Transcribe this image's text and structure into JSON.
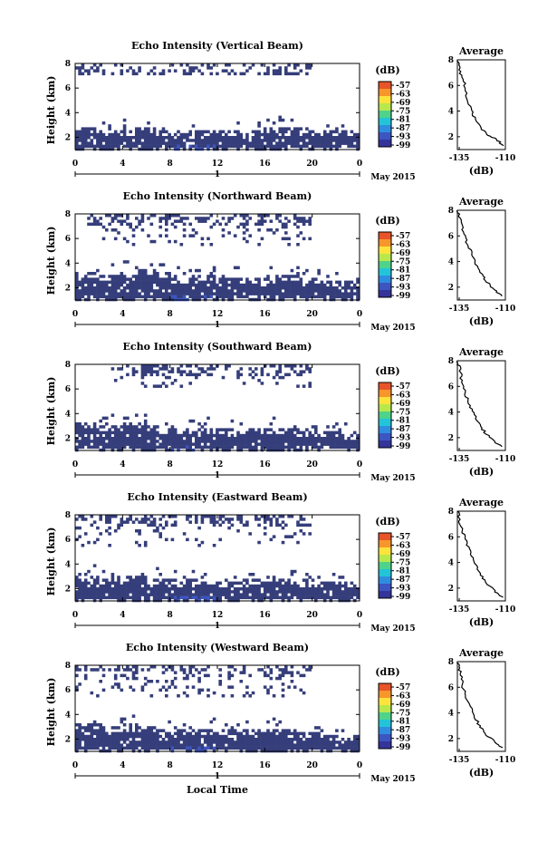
{
  "figure": {
    "x_axis_label": "Local Time",
    "date_label": "May 2015",
    "day_label": "1",
    "colorbar_unit": "(dB)",
    "colorbar_ticks": [
      "-57",
      "-63",
      "-69",
      "-75",
      "-81",
      "-87",
      "-93",
      "-99"
    ],
    "colorbar_colors": [
      "#e8542a",
      "#f7962b",
      "#fde33c",
      "#b8e84c",
      "#4fd38a",
      "#23c4d8",
      "#2f8de0",
      "#3c55c0",
      "#34349a"
    ],
    "cell_color": "#353e7a",
    "avg_title": "Average",
    "avg_xlabel": "(dB)",
    "height_label": "Height (km)"
  },
  "chart_data": [
    {
      "type": "heatmap",
      "title": "Echo Intensity (Vertical Beam)",
      "xlabel": "",
      "ylabel": "Height (km)",
      "xticks": [
        "0",
        "4",
        "8",
        "12",
        "16",
        "20",
        "0"
      ],
      "yticks": [
        "2",
        "4",
        "6",
        "8"
      ],
      "xlim": [
        0,
        24
      ],
      "ylim": [
        1,
        8
      ],
      "color_scale_db": [
        -99,
        -57
      ],
      "echo_base_km": 1.0,
      "lower_layer_top_km": [
        2.9,
        2.8,
        2.5,
        2.6,
        2.7,
        2.8,
        2.6,
        2.5,
        2.4,
        2.4,
        2.5,
        2.6,
        2.6,
        2.5,
        2.3,
        2.5,
        2.8,
        2.9,
        2.8,
        2.7,
        2.6,
        2.6,
        2.5,
        2.5
      ],
      "upper_echo_km": [
        7.0,
        8.0
      ],
      "upper_echo_hours": [
        0,
        20
      ],
      "average": {
        "title": "Average",
        "xlabel": "(dB)",
        "xticks": [
          "-135",
          "-110"
        ],
        "xlim": [
          -136,
          -110
        ],
        "yticks": [
          "2",
          "4",
          "6",
          "8"
        ],
        "ylim": [
          1,
          8
        ],
        "profile": [
          {
            "h": 1.3,
            "db": -111
          },
          {
            "h": 1.8,
            "db": -115
          },
          {
            "h": 2.2,
            "db": -120
          },
          {
            "h": 2.8,
            "db": -124
          },
          {
            "h": 3.5,
            "db": -127
          },
          {
            "h": 4.2,
            "db": -129
          },
          {
            "h": 5.0,
            "db": -131
          },
          {
            "h": 6.0,
            "db": -132
          },
          {
            "h": 6.8,
            "db": -134
          },
          {
            "h": 7.5,
            "db": -135
          },
          {
            "h": 8.0,
            "db": -136
          }
        ]
      }
    },
    {
      "type": "heatmap",
      "title": "Echo Intensity (Northward Beam)",
      "xlabel": "",
      "ylabel": "Height (km)",
      "xticks": [
        "0",
        "4",
        "8",
        "12",
        "16",
        "20",
        "0"
      ],
      "yticks": [
        "2",
        "4",
        "6",
        "8"
      ],
      "xlim": [
        0,
        24
      ],
      "ylim": [
        1,
        8
      ],
      "color_scale_db": [
        -99,
        -57
      ],
      "echo_base_km": 1.0,
      "lower_layer_top_km": [
        3.3,
        3.3,
        3.1,
        3.2,
        3.4,
        3.5,
        3.3,
        3.2,
        3.0,
        2.9,
        3.0,
        3.1,
        3.0,
        2.9,
        2.8,
        2.8,
        2.9,
        3.0,
        3.0,
        2.9,
        2.7,
        2.6,
        2.5,
        2.5
      ],
      "upper_echo_km": [
        5.5,
        8.0
      ],
      "upper_echo_hours": [
        1,
        20
      ],
      "average": {
        "title": "Average",
        "xlabel": "(dB)",
        "xticks": [
          "-135",
          "-110"
        ],
        "xlim": [
          -136,
          -110
        ],
        "yticks": [
          "2",
          "4",
          "6",
          "8"
        ],
        "ylim": [
          1,
          8
        ],
        "profile": [
          {
            "h": 1.3,
            "db": -112
          },
          {
            "h": 1.8,
            "db": -116
          },
          {
            "h": 2.4,
            "db": -120
          },
          {
            "h": 3.0,
            "db": -123
          },
          {
            "h": 3.8,
            "db": -126
          },
          {
            "h": 4.5,
            "db": -128
          },
          {
            "h": 5.2,
            "db": -130
          },
          {
            "h": 6.0,
            "db": -132
          },
          {
            "h": 6.8,
            "db": -134
          },
          {
            "h": 7.5,
            "db": -135
          },
          {
            "h": 8.0,
            "db": -136
          }
        ]
      }
    },
    {
      "type": "heatmap",
      "title": "Echo Intensity (Southward Beam)",
      "xlabel": "",
      "ylabel": "Height (km)",
      "xticks": [
        "0",
        "4",
        "8",
        "12",
        "16",
        "20",
        "0"
      ],
      "yticks": [
        "2",
        "4",
        "6",
        "8"
      ],
      "xlim": [
        0,
        24
      ],
      "ylim": [
        1,
        8
      ],
      "color_scale_db": [
        -99,
        -57
      ],
      "echo_base_km": 1.0,
      "lower_layer_top_km": [
        3.4,
        3.3,
        3.1,
        3.1,
        3.2,
        3.2,
        3.0,
        2.9,
        2.8,
        2.8,
        2.9,
        2.9,
        2.8,
        2.7,
        2.8,
        2.9,
        2.9,
        2.8,
        2.7,
        2.6,
        2.6,
        2.5,
        2.5,
        2.4
      ],
      "upper_echo_km": [
        6.0,
        8.0
      ],
      "upper_echo_hours": [
        3,
        20
      ],
      "average": {
        "title": "Average",
        "xlabel": "(dB)",
        "xticks": [
          "-135",
          "-110"
        ],
        "xlim": [
          -136,
          -110
        ],
        "yticks": [
          "2",
          "4",
          "6",
          "8"
        ],
        "ylim": [
          1,
          8
        ],
        "profile": [
          {
            "h": 1.3,
            "db": -112
          },
          {
            "h": 1.8,
            "db": -117
          },
          {
            "h": 2.4,
            "db": -121
          },
          {
            "h": 3.0,
            "db": -124
          },
          {
            "h": 3.8,
            "db": -127
          },
          {
            "h": 4.5,
            "db": -129
          },
          {
            "h": 5.2,
            "db": -131
          },
          {
            "h": 6.0,
            "db": -133
          },
          {
            "h": 6.8,
            "db": -134
          },
          {
            "h": 7.5,
            "db": -135
          },
          {
            "h": 8.0,
            "db": -136
          }
        ]
      }
    },
    {
      "type": "heatmap",
      "title": "Echo Intensity (Eastward Beam)",
      "xlabel": "",
      "ylabel": "Height (km)",
      "xticks": [
        "0",
        "4",
        "8",
        "12",
        "16",
        "20",
        "0"
      ],
      "yticks": [
        "2",
        "4",
        "6",
        "8"
      ],
      "xlim": [
        0,
        24
      ],
      "ylim": [
        1,
        8
      ],
      "color_scale_db": [
        -99,
        -57
      ],
      "echo_base_km": 1.0,
      "lower_layer_top_km": [
        3.2,
        3.1,
        2.9,
        3.0,
        3.1,
        3.1,
        2.9,
        2.8,
        2.7,
        2.7,
        2.8,
        2.8,
        2.7,
        2.6,
        2.7,
        2.9,
        3.0,
        2.9,
        2.8,
        2.7,
        2.6,
        2.6,
        2.5,
        2.5
      ],
      "upper_echo_km": [
        5.5,
        8.0
      ],
      "upper_echo_hours": [
        0,
        20
      ],
      "average": {
        "title": "Average",
        "xlabel": "(dB)",
        "xticks": [
          "-135",
          "-110"
        ],
        "xlim": [
          -136,
          -110
        ],
        "yticks": [
          "2",
          "4",
          "6",
          "8"
        ],
        "ylim": [
          1,
          8
        ],
        "profile": [
          {
            "h": 1.3,
            "db": -112
          },
          {
            "h": 1.8,
            "db": -116
          },
          {
            "h": 2.4,
            "db": -120
          },
          {
            "h": 3.0,
            "db": -123
          },
          {
            "h": 3.8,
            "db": -126
          },
          {
            "h": 4.5,
            "db": -128
          },
          {
            "h": 5.2,
            "db": -130
          },
          {
            "h": 6.0,
            "db": -132
          },
          {
            "h": 6.8,
            "db": -134
          },
          {
            "h": 7.5,
            "db": -135
          },
          {
            "h": 8.0,
            "db": -136
          }
        ]
      }
    },
    {
      "type": "heatmap",
      "title": "Echo Intensity (Westward Beam)",
      "xlabel": "Local Time",
      "ylabel": "Height (km)",
      "xticks": [
        "0",
        "4",
        "8",
        "12",
        "16",
        "20",
        "0"
      ],
      "yticks": [
        "2",
        "4",
        "6",
        "8"
      ],
      "xlim": [
        0,
        24
      ],
      "ylim": [
        1,
        8
      ],
      "color_scale_db": [
        -99,
        -57
      ],
      "echo_base_km": 1.0,
      "lower_layer_top_km": [
        3.3,
        3.2,
        3.0,
        3.0,
        3.1,
        3.1,
        3.0,
        2.9,
        2.8,
        2.8,
        2.8,
        2.9,
        2.8,
        2.7,
        2.8,
        2.9,
        2.9,
        2.8,
        2.7,
        2.6,
        2.5,
        2.4,
        2.4,
        2.3
      ],
      "upper_echo_km": [
        5.5,
        8.0
      ],
      "upper_echo_hours": [
        0,
        20
      ],
      "average": {
        "title": "Average",
        "xlabel": "(dB)",
        "xticks": [
          "-135",
          "-110"
        ],
        "xlim": [
          -136,
          -110
        ],
        "yticks": [
          "2",
          "4",
          "6",
          "8"
        ],
        "ylim": [
          1,
          8
        ],
        "profile": [
          {
            "h": 1.3,
            "db": -112
          },
          {
            "h": 1.8,
            "db": -116
          },
          {
            "h": 2.4,
            "db": -121
          },
          {
            "h": 3.0,
            "db": -124
          },
          {
            "h": 3.8,
            "db": -127
          },
          {
            "h": 4.5,
            "db": -129
          },
          {
            "h": 5.2,
            "db": -131
          },
          {
            "h": 6.0,
            "db": -133
          },
          {
            "h": 6.8,
            "db": -134
          },
          {
            "h": 7.5,
            "db": -135
          },
          {
            "h": 8.0,
            "db": -136
          }
        ]
      }
    }
  ]
}
